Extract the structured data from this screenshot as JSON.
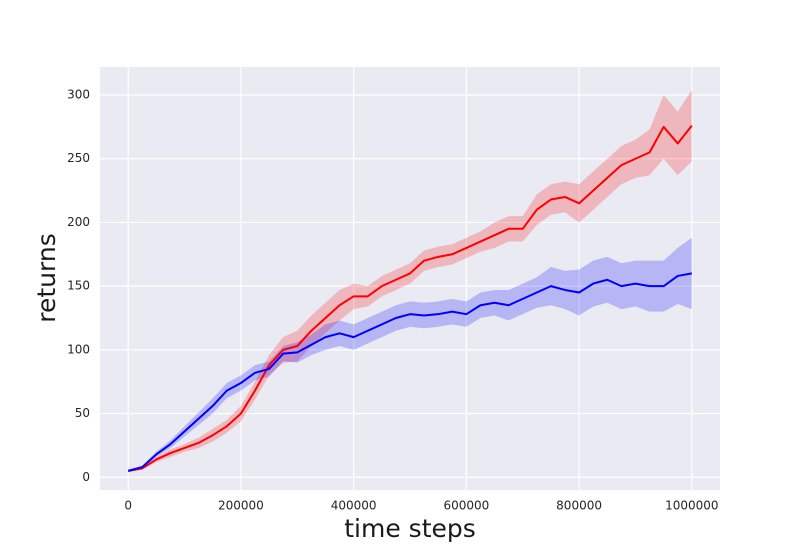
{
  "chart_data": {
    "type": "line",
    "xlabel": "time steps",
    "ylabel": "returns",
    "x": [
      0,
      25000,
      50000,
      75000,
      100000,
      125000,
      150000,
      175000,
      200000,
      225000,
      250000,
      275000,
      300000,
      325000,
      350000,
      375000,
      400000,
      425000,
      450000,
      475000,
      500000,
      525000,
      550000,
      575000,
      600000,
      625000,
      650000,
      675000,
      700000,
      725000,
      750000,
      775000,
      800000,
      825000,
      850000,
      875000,
      900000,
      925000,
      950000,
      975000,
      1000000
    ],
    "series": [
      {
        "color": "#ff0000",
        "values": [
          5,
          7,
          14,
          19,
          23,
          27,
          33,
          40,
          50,
          68,
          88,
          100,
          103,
          115,
          125,
          135,
          142,
          142,
          150,
          155,
          160,
          170,
          173,
          175,
          180,
          185,
          190,
          195,
          195,
          210,
          218,
          220,
          215,
          225,
          235,
          245,
          250,
          255,
          275,
          262,
          276
        ],
        "upper": [
          6,
          8,
          16,
          22,
          26,
          31,
          38,
          45,
          56,
          75,
          96,
          110,
          115,
          127,
          137,
          147,
          152,
          150,
          158,
          163,
          168,
          178,
          181,
          183,
          188,
          193,
          200,
          205,
          205,
          222,
          230,
          232,
          230,
          240,
          250,
          260,
          265,
          273,
          300,
          287,
          304
        ],
        "lower": [
          4,
          6,
          12,
          16,
          20,
          23,
          28,
          35,
          44,
          61,
          80,
          90,
          91,
          103,
          113,
          123,
          132,
          134,
          142,
          147,
          152,
          162,
          165,
          167,
          172,
          177,
          180,
          185,
          185,
          198,
          206,
          208,
          200,
          210,
          220,
          230,
          235,
          237,
          250,
          237,
          248
        ]
      },
      {
        "color": "#0000ff",
        "values": [
          5,
          8,
          18,
          26,
          36,
          46,
          56,
          68,
          74,
          82,
          85,
          97,
          98,
          104,
          110,
          113,
          110,
          115,
          120,
          125,
          128,
          127,
          128,
          130,
          128,
          135,
          137,
          135,
          140,
          145,
          150,
          147,
          145,
          152,
          155,
          150,
          152,
          150,
          150,
          158,
          160
        ],
        "upper": [
          6,
          9,
          20,
          29,
          40,
          51,
          62,
          74,
          80,
          88,
          91,
          103,
          106,
          112,
          120,
          123,
          120,
          125,
          130,
          135,
          138,
          137,
          138,
          140,
          138,
          145,
          147,
          147,
          152,
          157,
          165,
          162,
          163,
          170,
          173,
          168,
          170,
          170,
          170,
          180,
          188
        ],
        "lower": [
          4,
          7,
          16,
          23,
          32,
          41,
          50,
          62,
          68,
          76,
          79,
          91,
          90,
          96,
          100,
          103,
          100,
          105,
          110,
          115,
          118,
          117,
          118,
          120,
          118,
          125,
          127,
          123,
          128,
          133,
          135,
          132,
          127,
          134,
          137,
          132,
          134,
          130,
          130,
          136,
          132
        ]
      }
    ],
    "xlim": [
      -50000,
      1050000
    ],
    "ylim": [
      -10,
      322
    ],
    "xticks": [
      0,
      200000,
      400000,
      600000,
      800000,
      1000000
    ],
    "yticks": [
      0,
      50,
      100,
      150,
      200,
      250,
      300
    ],
    "grid": true
  }
}
